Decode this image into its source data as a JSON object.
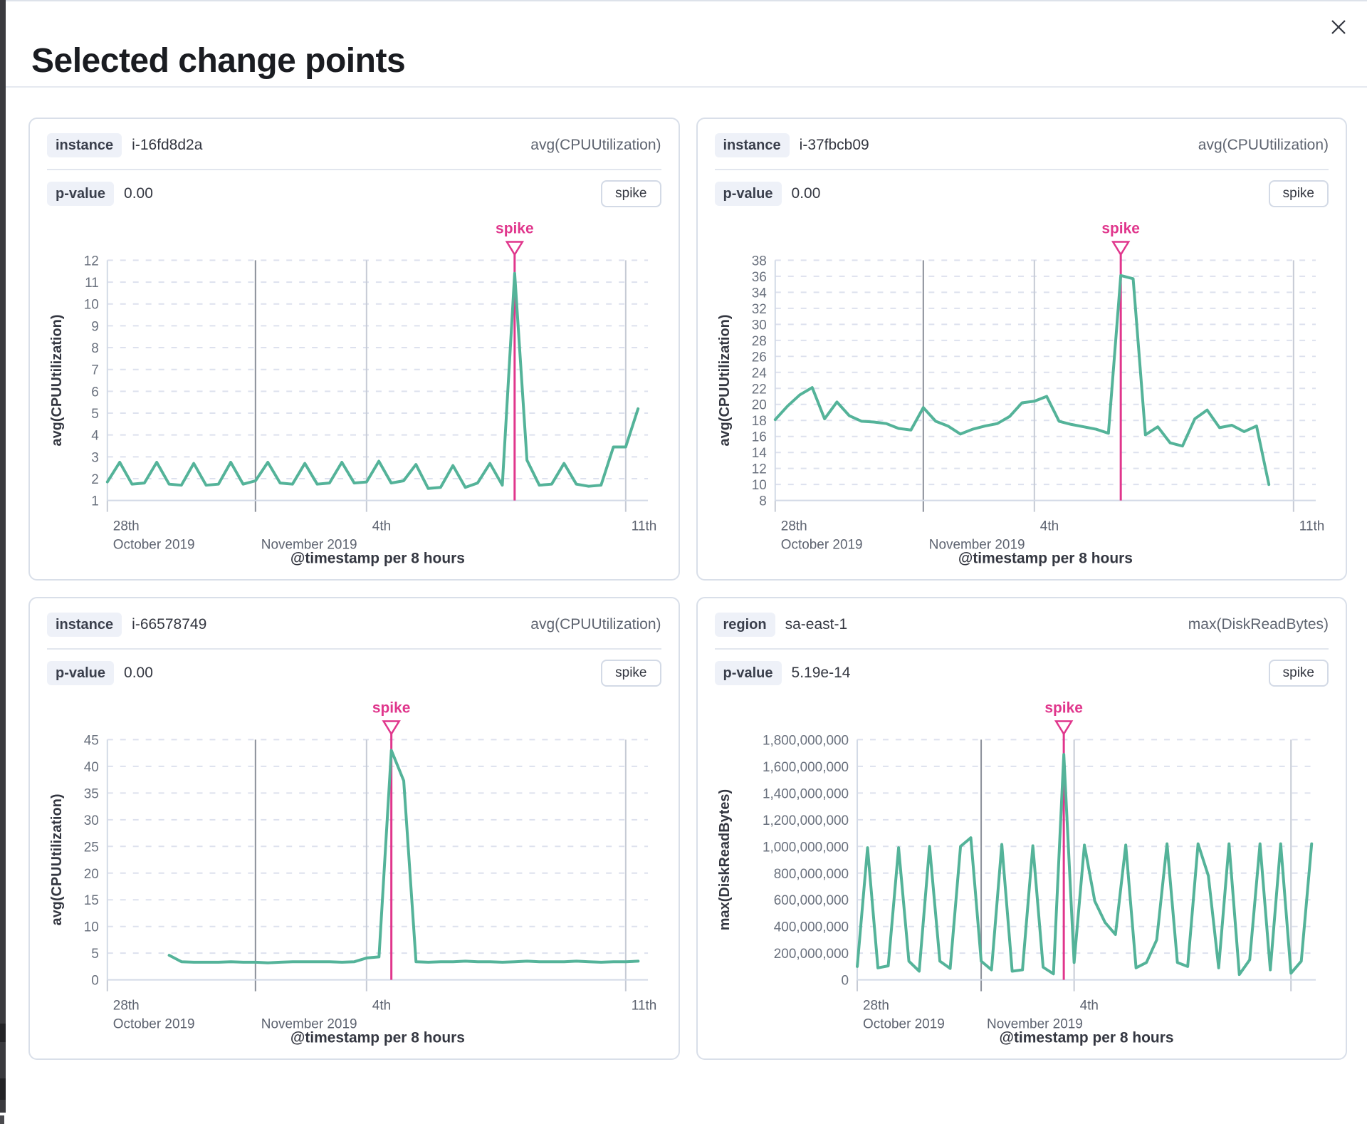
{
  "page": {
    "title": "Selected change points",
    "close_icon": "x-close"
  },
  "colors": {
    "series_green": "#54B399",
    "annotation_pink": "#E0368C",
    "gridline_dashed": "#dde1ee",
    "gridline_month": "#8a8f99",
    "gridline_minor": "#c6cbd5",
    "axis_line": "#d3dae6",
    "tick_text": "#69707d",
    "axis_title_text": "#343741",
    "panel_border": "#d9dfe9",
    "badge_bg": "#eef1f8"
  },
  "panels": [
    {
      "field_badge": "instance",
      "field_value": "i-16fd8d2a",
      "metric_label": "avg(CPUUtilization)",
      "pvalue_badge": "p-value",
      "pvalue": "0.00",
      "type_button": "spike",
      "chart_data": {
        "type": "line",
        "y_title": "avg(CPUUtilization)",
        "x_title": "@timestamp per 8 hours",
        "y_min": 1,
        "y_max": 12,
        "y_step": 1,
        "y_format": "plain",
        "x_domain_days": 14.6,
        "x_offset_days": 0,
        "points_per_day": 3,
        "x_ticks": [
          {
            "day": 0,
            "line1": "28th",
            "line2": "October 2019",
            "dark": false
          },
          {
            "day": 4,
            "line1": "",
            "line2": "November 2019",
            "dark": true
          },
          {
            "day": 7,
            "line1": "4th",
            "line2": "",
            "dark": false
          },
          {
            "day": 14,
            "line1": "11th",
            "line2": "",
            "dark": false
          }
        ],
        "annotation": {
          "label": "spike",
          "index": 33
        },
        "values": [
          1.85,
          2.75,
          1.75,
          1.8,
          2.75,
          1.75,
          1.7,
          2.7,
          1.7,
          1.75,
          2.75,
          1.75,
          1.9,
          2.75,
          1.8,
          1.75,
          2.7,
          1.75,
          1.8,
          2.75,
          1.8,
          1.85,
          2.8,
          1.8,
          1.9,
          2.65,
          1.55,
          1.6,
          2.6,
          1.6,
          1.8,
          2.7,
          1.7,
          11.4,
          2.85,
          1.7,
          1.75,
          2.7,
          1.75,
          1.65,
          1.7,
          3.45,
          3.45,
          5.2
        ]
      }
    },
    {
      "field_badge": "instance",
      "field_value": "i-37fbcb09",
      "metric_label": "avg(CPUUtilization)",
      "pvalue_badge": "p-value",
      "pvalue": "0.00",
      "type_button": "spike",
      "chart_data": {
        "type": "line",
        "y_title": "avg(CPUUtilization)",
        "x_title": "@timestamp per 8 hours",
        "y_min": 8,
        "y_max": 38,
        "y_step": 2,
        "y_format": "plain",
        "x_domain_days": 14.6,
        "x_offset_days": 0,
        "points_per_day": 3,
        "x_ticks": [
          {
            "day": 0,
            "line1": "28th",
            "line2": "October 2019",
            "dark": false
          },
          {
            "day": 4,
            "line1": "",
            "line2": "November 2019",
            "dark": true
          },
          {
            "day": 7,
            "line1": "4th",
            "line2": "",
            "dark": false
          },
          {
            "day": 14,
            "line1": "11th",
            "line2": "",
            "dark": false
          }
        ],
        "annotation": {
          "label": "spike",
          "index": 28
        },
        "values": [
          18.1,
          19.8,
          21.2,
          22.1,
          18.2,
          20.3,
          18.6,
          17.9,
          17.8,
          17.6,
          17.0,
          16.8,
          19.6,
          17.9,
          17.3,
          16.3,
          16.9,
          17.3,
          17.6,
          18.5,
          20.2,
          20.4,
          21.0,
          17.9,
          17.5,
          17.2,
          16.9,
          16.4,
          36.1,
          35.7,
          16.2,
          17.2,
          15.2,
          14.8,
          18.2,
          19.3,
          17.1,
          17.4,
          16.6,
          17.3,
          10.0
        ]
      }
    },
    {
      "field_badge": "instance",
      "field_value": "i-66578749",
      "metric_label": "avg(CPUUtilization)",
      "pvalue_badge": "p-value",
      "pvalue": "0.00",
      "type_button": "spike",
      "chart_data": {
        "type": "line",
        "y_title": "avg(CPUUtilization)",
        "x_title": "@timestamp per 8 hours",
        "y_min": 0,
        "y_max": 45,
        "y_step": 5,
        "y_format": "plain",
        "x_domain_days": 14.6,
        "x_offset_days": 1.67,
        "points_per_day": 3,
        "x_ticks": [
          {
            "day": 0,
            "line1": "28th",
            "line2": "October 2019",
            "dark": false
          },
          {
            "day": 4,
            "line1": "",
            "line2": "November 2019",
            "dark": true
          },
          {
            "day": 7,
            "line1": "4th",
            "line2": "",
            "dark": false
          },
          {
            "day": 14,
            "line1": "11th",
            "line2": "",
            "dark": false
          }
        ],
        "annotation": {
          "label": "spike",
          "index": 18
        },
        "values": [
          4.6,
          3.4,
          3.3,
          3.3,
          3.3,
          3.4,
          3.3,
          3.3,
          3.2,
          3.3,
          3.4,
          3.4,
          3.4,
          3.4,
          3.3,
          3.4,
          4.1,
          4.3,
          43.0,
          37.3,
          3.4,
          3.3,
          3.4,
          3.4,
          3.5,
          3.4,
          3.4,
          3.3,
          3.4,
          3.5,
          3.4,
          3.4,
          3.4,
          3.5,
          3.4,
          3.3,
          3.4,
          3.4,
          3.5
        ]
      }
    },
    {
      "field_badge": "region",
      "field_value": "sa-east-1",
      "metric_label": "max(DiskReadBytes)",
      "pvalue_badge": "p-value",
      "pvalue": "5.19e-14",
      "type_button": "spike",
      "chart_data": {
        "type": "line",
        "y_title": "max(DiskReadBytes)",
        "x_title": "@timestamp per 8 hours",
        "y_min": 0,
        "y_max": 1800000000,
        "y_step": 200000000,
        "y_format": "comma",
        "x_domain_days": 14.8,
        "x_offset_days": 0,
        "points_per_day": 3,
        "x_ticks": [
          {
            "day": 0,
            "line1": "28th",
            "line2": "October 2019",
            "dark": false
          },
          {
            "day": 4,
            "line1": "",
            "line2": "November 2019",
            "dark": true
          },
          {
            "day": 7,
            "line1": "4th",
            "line2": "",
            "dark": false
          },
          {
            "day": 14,
            "line1": "",
            "line2": "",
            "dark": false
          }
        ],
        "annotation": {
          "label": "spike",
          "index": 20
        },
        "values": [
          100000000,
          990000000,
          90000000,
          105000000,
          990000000,
          140000000,
          65000000,
          1000000000,
          140000000,
          85000000,
          1000000000,
          1065000000,
          140000000,
          75000000,
          1015000000,
          65000000,
          75000000,
          1005000000,
          95000000,
          45000000,
          1690000000,
          130000000,
          1010000000,
          590000000,
          430000000,
          340000000,
          1010000000,
          90000000,
          130000000,
          300000000,
          1020000000,
          130000000,
          100000000,
          1020000000,
          780000000,
          90000000,
          1020000000,
          40000000,
          150000000,
          1020000000,
          75000000,
          1020000000,
          50000000,
          140000000,
          1020000000
        ]
      }
    }
  ]
}
